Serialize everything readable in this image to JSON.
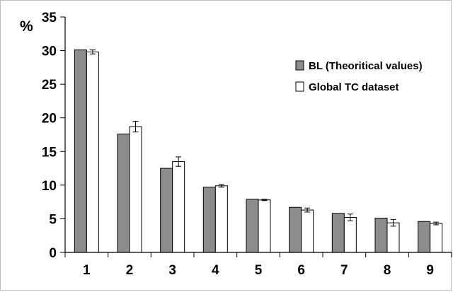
{
  "chart_data": {
    "type": "bar",
    "ylabel": "%",
    "ylim": [
      0,
      35
    ],
    "yticks": [
      0,
      5,
      10,
      15,
      20,
      25,
      30,
      35
    ],
    "grid": false,
    "legend_position": "top-right",
    "categories": [
      "1",
      "2",
      "3",
      "4",
      "5",
      "6",
      "7",
      "8",
      "9"
    ],
    "series": [
      {
        "name": "BL (Theoritical values)",
        "color": "#8c8c8c",
        "values": [
          30.1,
          17.6,
          12.5,
          9.7,
          7.9,
          6.7,
          5.8,
          5.1,
          4.6
        ],
        "errors": [
          0,
          0,
          0,
          0,
          0,
          0,
          0,
          0,
          0
        ]
      },
      {
        "name": "Global TC dataset",
        "color": "#ffffff",
        "values": [
          29.8,
          18.7,
          13.5,
          9.9,
          7.8,
          6.3,
          5.2,
          4.4,
          4.3
        ],
        "errors": [
          0.3,
          0.8,
          0.7,
          0.2,
          0.1,
          0.3,
          0.5,
          0.5,
          0.2
        ]
      }
    ]
  }
}
